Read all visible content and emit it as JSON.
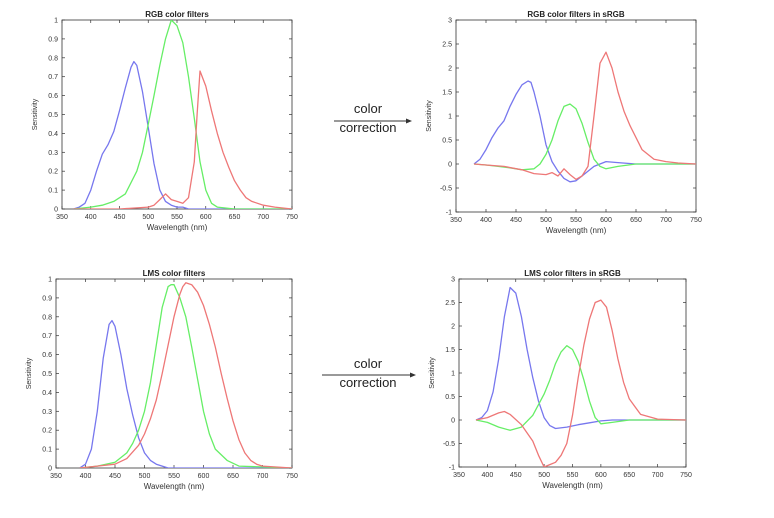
{
  "arrows": [
    {
      "line1": "color",
      "line2": "correction"
    },
    {
      "line1": "color",
      "line2": "correction"
    }
  ],
  "chart_data": [
    {
      "type": "line",
      "title": "RGB color filters",
      "xlabel": "Wavelength (nm)",
      "ylabel": "Sensitivity",
      "xlim": [
        350,
        750
      ],
      "ylim": [
        0,
        1
      ],
      "xticks": [
        350,
        400,
        450,
        500,
        550,
        600,
        650,
        700,
        750
      ],
      "yticks": [
        0,
        0.1,
        0.2,
        0.3,
        0.4,
        0.5,
        0.6,
        0.7,
        0.8,
        0.9,
        1
      ],
      "ytick_labels": [
        "0",
        "0.1",
        "0.2",
        "0.3",
        "0.4",
        "0.5",
        "0.6",
        "0.7",
        "0.8",
        "0.9",
        "1"
      ],
      "grid": false,
      "series": [
        {
          "color": "#7777ee",
          "x": [
            370,
            380,
            390,
            400,
            410,
            420,
            430,
            440,
            450,
            460,
            470,
            475,
            480,
            490,
            500,
            510,
            520,
            530,
            540,
            550,
            560,
            570,
            600,
            650,
            750
          ],
          "y": [
            0,
            0.01,
            0.03,
            0.1,
            0.2,
            0.29,
            0.34,
            0.41,
            0.52,
            0.64,
            0.75,
            0.78,
            0.76,
            0.62,
            0.43,
            0.24,
            0.1,
            0.04,
            0.02,
            0.01,
            0.01,
            0,
            0,
            0,
            0
          ]
        },
        {
          "color": "#66ee66",
          "x": [
            370,
            400,
            420,
            440,
            460,
            480,
            490,
            500,
            510,
            520,
            530,
            540,
            550,
            560,
            570,
            580,
            590,
            600,
            610,
            620,
            650,
            700,
            750
          ],
          "y": [
            0,
            0.01,
            0.02,
            0.04,
            0.08,
            0.2,
            0.3,
            0.45,
            0.6,
            0.76,
            0.9,
            1.0,
            0.97,
            0.88,
            0.7,
            0.48,
            0.25,
            0.1,
            0.03,
            0.01,
            0,
            0,
            0
          ]
        },
        {
          "color": "#ee7777",
          "x": [
            370,
            400,
            450,
            500,
            510,
            520,
            530,
            540,
            550,
            560,
            570,
            580,
            585,
            590,
            600,
            610,
            620,
            630,
            640,
            650,
            660,
            670,
            680,
            700,
            720,
            750
          ],
          "y": [
            0,
            0,
            0,
            0.01,
            0.02,
            0.05,
            0.08,
            0.05,
            0.04,
            0.03,
            0.06,
            0.25,
            0.5,
            0.73,
            0.65,
            0.52,
            0.4,
            0.3,
            0.22,
            0.15,
            0.1,
            0.06,
            0.04,
            0.02,
            0.01,
            0
          ]
        }
      ]
    },
    {
      "type": "line",
      "title": "RGB color filters in sRGB",
      "xlabel": "Wavelength (nm)",
      "ylabel": "Sensitivity",
      "xlim": [
        350,
        750
      ],
      "ylim": [
        -1,
        3
      ],
      "xticks": [
        350,
        400,
        450,
        500,
        550,
        600,
        650,
        700,
        750
      ],
      "yticks": [
        -1,
        -0.5,
        0,
        0.5,
        1,
        1.5,
        2,
        2.5,
        3
      ],
      "ytick_labels": [
        "-1",
        "-0.5",
        "0",
        "0.5",
        "1",
        "1.5",
        "2",
        "2.5",
        "3"
      ],
      "grid": false,
      "series": [
        {
          "color": "#7777ee",
          "x": [
            380,
            390,
            400,
            410,
            420,
            430,
            440,
            450,
            460,
            470,
            475,
            480,
            490,
            500,
            510,
            520,
            530,
            540,
            550,
            560,
            580,
            600,
            620,
            650,
            700,
            750
          ],
          "y": [
            0,
            0.1,
            0.3,
            0.55,
            0.75,
            0.9,
            1.2,
            1.45,
            1.65,
            1.73,
            1.7,
            1.5,
            1.0,
            0.4,
            0.05,
            -0.15,
            -0.3,
            -0.37,
            -0.35,
            -0.25,
            -0.05,
            0.05,
            0.03,
            0,
            0,
            0
          ]
        },
        {
          "color": "#66ee66",
          "x": [
            380,
            400,
            420,
            440,
            460,
            480,
            490,
            500,
            510,
            520,
            530,
            540,
            550,
            560,
            570,
            580,
            590,
            600,
            620,
            650,
            700,
            750
          ],
          "y": [
            0,
            -0.02,
            -0.05,
            -0.08,
            -0.12,
            -0.1,
            0.0,
            0.2,
            0.5,
            0.9,
            1.2,
            1.25,
            1.15,
            0.85,
            0.45,
            0.1,
            -0.05,
            -0.1,
            -0.05,
            0,
            0,
            0
          ]
        },
        {
          "color": "#ee7777",
          "x": [
            380,
            400,
            430,
            460,
            480,
            500,
            510,
            520,
            530,
            540,
            550,
            560,
            570,
            580,
            590,
            600,
            610,
            620,
            630,
            640,
            660,
            680,
            700,
            720,
            750
          ],
          "y": [
            0,
            -0.02,
            -0.05,
            -0.12,
            -0.2,
            -0.22,
            -0.18,
            -0.25,
            -0.1,
            -0.22,
            -0.32,
            -0.25,
            -0.05,
            1.0,
            2.1,
            2.33,
            2.0,
            1.5,
            1.1,
            0.8,
            0.3,
            0.1,
            0.05,
            0.02,
            0
          ]
        }
      ]
    },
    {
      "type": "line",
      "title": "LMS color filters",
      "xlabel": "Wavelength (nm)",
      "ylabel": "Sensitivity",
      "xlim": [
        350,
        750
      ],
      "ylim": [
        0,
        1
      ],
      "xticks": [
        350,
        400,
        450,
        500,
        550,
        600,
        650,
        700,
        750
      ],
      "yticks": [
        0,
        0.1,
        0.2,
        0.3,
        0.4,
        0.5,
        0.6,
        0.7,
        0.8,
        0.9,
        1
      ],
      "ytick_labels": [
        "0",
        "0.1",
        "0.2",
        "0.3",
        "0.4",
        "0.5",
        "0.6",
        "0.7",
        "0.8",
        "0.9",
        "1"
      ],
      "grid": false,
      "series": [
        {
          "color": "#7777ee",
          "x": [
            390,
            400,
            410,
            420,
            430,
            440,
            445,
            450,
            460,
            470,
            480,
            490,
            500,
            510,
            520,
            530,
            540,
            560,
            600,
            750
          ],
          "y": [
            0,
            0.02,
            0.1,
            0.3,
            0.58,
            0.76,
            0.78,
            0.75,
            0.6,
            0.42,
            0.28,
            0.16,
            0.08,
            0.04,
            0.02,
            0.01,
            0,
            0,
            0,
            0
          ]
        },
        {
          "color": "#66ee66",
          "x": [
            390,
            420,
            450,
            470,
            480,
            490,
            500,
            510,
            520,
            530,
            540,
            545,
            550,
            560,
            570,
            580,
            590,
            600,
            610,
            620,
            640,
            660,
            750
          ],
          "y": [
            0,
            0.01,
            0.03,
            0.08,
            0.13,
            0.2,
            0.3,
            0.45,
            0.65,
            0.85,
            0.96,
            0.97,
            0.97,
            0.9,
            0.8,
            0.64,
            0.47,
            0.3,
            0.18,
            0.1,
            0.04,
            0.01,
            0
          ]
        },
        {
          "color": "#ee7777",
          "x": [
            390,
            420,
            450,
            470,
            490,
            500,
            510,
            520,
            530,
            540,
            550,
            560,
            565,
            570,
            580,
            590,
            600,
            610,
            620,
            630,
            640,
            650,
            660,
            670,
            680,
            690,
            700,
            750
          ],
          "y": [
            0,
            0.01,
            0.02,
            0.05,
            0.12,
            0.18,
            0.26,
            0.36,
            0.5,
            0.65,
            0.8,
            0.92,
            0.96,
            0.98,
            0.97,
            0.93,
            0.86,
            0.76,
            0.64,
            0.5,
            0.37,
            0.25,
            0.15,
            0.08,
            0.04,
            0.02,
            0.01,
            0
          ]
        }
      ]
    },
    {
      "type": "line",
      "title": "LMS color filters in sRGB",
      "xlabel": "Wavelength (nm)",
      "ylabel": "Sensitivity",
      "xlim": [
        350,
        750
      ],
      "ylim": [
        -1,
        3
      ],
      "xticks": [
        350,
        400,
        450,
        500,
        550,
        600,
        650,
        700,
        750
      ],
      "yticks": [
        -1,
        -0.5,
        0,
        0.5,
        1,
        1.5,
        2,
        2.5,
        3
      ],
      "ytick_labels": [
        "-1",
        "-0.5",
        "0",
        "0.5",
        "1",
        "1.5",
        "2",
        "2.5",
        "3"
      ],
      "grid": false,
      "series": [
        {
          "color": "#7777ee",
          "x": [
            380,
            390,
            400,
            410,
            420,
            430,
            440,
            450,
            460,
            470,
            480,
            490,
            500,
            510,
            520,
            540,
            560,
            580,
            600,
            620,
            650,
            700,
            750
          ],
          "y": [
            0,
            0.05,
            0.2,
            0.6,
            1.3,
            2.2,
            2.82,
            2.7,
            2.2,
            1.5,
            0.9,
            0.4,
            0.05,
            -0.12,
            -0.18,
            -0.15,
            -0.1,
            -0.06,
            -0.02,
            0,
            0,
            0,
            0
          ]
        },
        {
          "color": "#66ee66",
          "x": [
            380,
            400,
            420,
            440,
            460,
            480,
            500,
            510,
            520,
            530,
            540,
            550,
            560,
            570,
            580,
            590,
            600,
            620,
            650,
            700,
            750
          ],
          "y": [
            0,
            -0.05,
            -0.15,
            -0.22,
            -0.15,
            0.1,
            0.55,
            0.85,
            1.2,
            1.45,
            1.58,
            1.5,
            1.25,
            0.85,
            0.4,
            0.05,
            -0.08,
            -0.05,
            0,
            0,
            0
          ]
        },
        {
          "color": "#ee7777",
          "x": [
            380,
            400,
            420,
            430,
            440,
            460,
            480,
            490,
            500,
            510,
            520,
            530,
            540,
            550,
            560,
            570,
            580,
            590,
            600,
            610,
            620,
            630,
            640,
            650,
            670,
            700,
            750
          ],
          "y": [
            0,
            0.05,
            0.15,
            0.18,
            0.12,
            -0.1,
            -0.45,
            -0.75,
            -1.0,
            -0.95,
            -0.9,
            -0.75,
            -0.5,
            0.1,
            0.9,
            1.6,
            2.15,
            2.5,
            2.55,
            2.4,
            1.9,
            1.3,
            0.8,
            0.45,
            0.12,
            0.02,
            0
          ]
        }
      ]
    }
  ]
}
